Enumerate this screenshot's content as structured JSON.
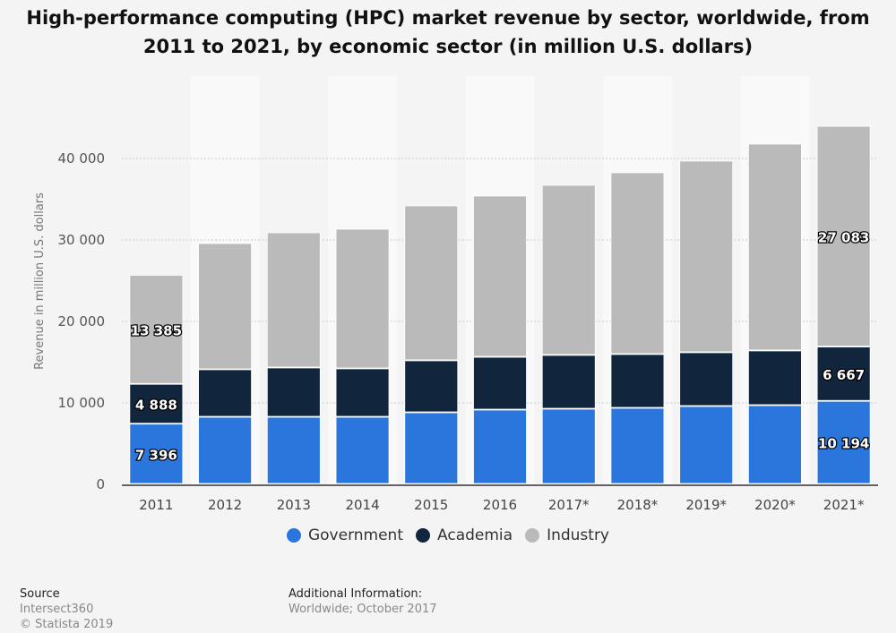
{
  "chart_data": {
    "type": "bar",
    "stacked": true,
    "title": "High-performance computing (HPC) market revenue by sector, worldwide, from 2011 to 2021, by economic sector (in million U.S. dollars)",
    "title_lines": [
      "High-performance computing (HPC) market revenue by sector, worldwide, from",
      "2011 to 2021, by economic sector (in million U.S. dollars)"
    ],
    "xlabel": "",
    "ylabel": "Revenue in million U.S. dollars",
    "ylim": [
      0,
      50000
    ],
    "yticks": [
      0,
      10000,
      20000,
      30000,
      40000
    ],
    "ytick_labels": [
      "0",
      "10 000",
      "20 000",
      "30 000",
      "40 000"
    ],
    "grid": true,
    "legend_position": "bottom",
    "categories": [
      "2011",
      "2012",
      "2013",
      "2014",
      "2015",
      "2016",
      "2017*",
      "2018*",
      "2019*",
      "2020*",
      "2021*"
    ],
    "series": [
      {
        "name": "Government",
        "color": "#2a76dd",
        "values": [
          7396,
          8240,
          8240,
          8240,
          8790,
          9120,
          9230,
          9340,
          9560,
          9670,
          10194
        ]
      },
      {
        "name": "Academia",
        "color": "#11263d",
        "values": [
          4888,
          5830,
          6050,
          5940,
          6380,
          6480,
          6600,
          6600,
          6600,
          6710,
          6667
        ]
      },
      {
        "name": "Industry",
        "color": "#bababa",
        "values": [
          13385,
          15490,
          16590,
          17140,
          19010,
          19790,
          20880,
          22310,
          23520,
          25380,
          27083
        ]
      }
    ],
    "data_labels": [
      {
        "category": "2011",
        "series": "Government",
        "text": "7 396"
      },
      {
        "category": "2011",
        "series": "Academia",
        "text": "4 888"
      },
      {
        "category": "2011",
        "series": "Industry",
        "text": "13 385"
      },
      {
        "category": "2021*",
        "series": "Government",
        "text": "10 194"
      },
      {
        "category": "2021*",
        "series": "Academia",
        "text": "6 667"
      },
      {
        "category": "2021*",
        "series": "Industry",
        "text": "27 083"
      }
    ]
  },
  "legend": [
    {
      "label": "Government",
      "color": "#2a76dd"
    },
    {
      "label": "Academia",
      "color": "#11263d"
    },
    {
      "label": "Industry",
      "color": "#bababa"
    }
  ],
  "footer": {
    "source_heading": "Source",
    "source_name": "Intersect360",
    "copyright": "© Statista 2019",
    "additional_heading": "Additional Information:",
    "additional_text": "Worldwide; October 2017"
  }
}
